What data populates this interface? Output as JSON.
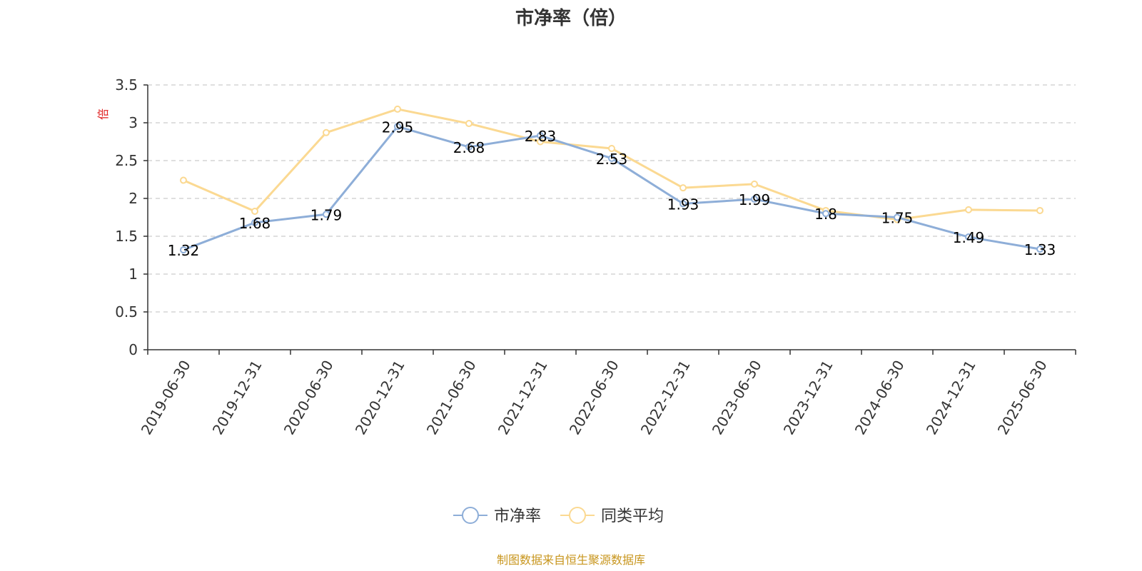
{
  "chart_data": {
    "type": "line",
    "title": "市净率（倍）",
    "ylabel": "倍",
    "ylim": [
      0,
      3.5
    ],
    "yticks": [
      "0",
      "0.5",
      "1",
      "1.5",
      "2",
      "2.5",
      "3",
      "3.5"
    ],
    "categories": [
      "2019-06-30",
      "2019-12-31",
      "2020-06-30",
      "2020-12-31",
      "2021-06-30",
      "2021-12-31",
      "2022-06-30",
      "2022-12-31",
      "2023-06-30",
      "2023-12-31",
      "2024-06-30",
      "2024-12-31",
      "2025-06-30"
    ],
    "series": [
      {
        "name": "市净率",
        "color": "#8eaed8",
        "values": [
          1.32,
          1.68,
          1.79,
          2.95,
          2.68,
          2.83,
          2.53,
          1.93,
          1.99,
          1.8,
          1.75,
          1.49,
          1.33
        ],
        "labels": [
          "1.32",
          "1.68",
          "1.79",
          "2.95",
          "2.68",
          "2.83",
          "2.53",
          "1.93",
          "1.99",
          "1.8",
          "1.75",
          "1.49",
          "1.33"
        ]
      },
      {
        "name": "同类平均",
        "color": "#fbd992",
        "values": [
          2.24,
          1.83,
          2.87,
          3.18,
          2.99,
          2.75,
          2.66,
          2.14,
          2.19,
          1.84,
          1.72,
          1.85,
          1.84
        ]
      }
    ],
    "grid": true,
    "legend_position": "bottom-center"
  },
  "source_text": "制图数据来自恒生聚源数据库"
}
